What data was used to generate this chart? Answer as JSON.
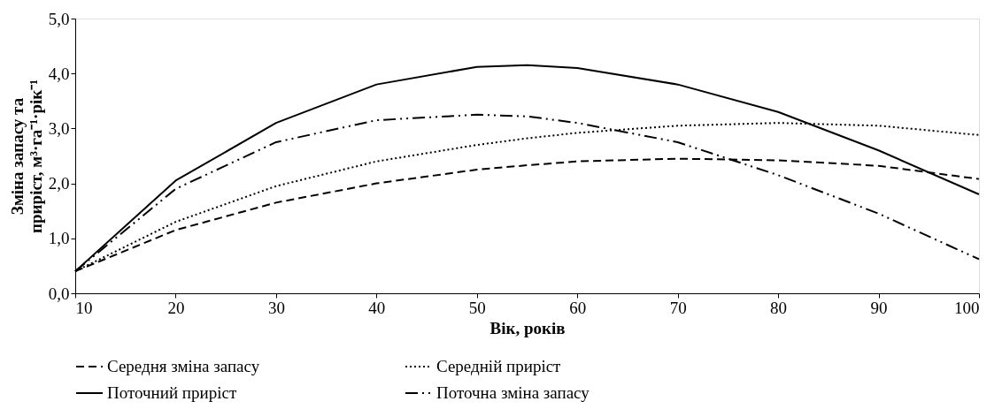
{
  "chart_data": {
    "type": "line",
    "xlabel": "Вік, років",
    "ylabel": "Зміна запасу та приріст, м³·га⁻¹·рік⁻¹",
    "x": [
      10,
      20,
      30,
      40,
      50,
      55,
      60,
      70,
      80,
      90,
      100
    ],
    "series": [
      {
        "name": "Середня зміна запасу",
        "color": "#000000",
        "line_style": "dashed",
        "values": [
          0.4,
          1.15,
          1.65,
          2.0,
          2.25,
          2.33,
          2.4,
          2.45,
          2.42,
          2.32,
          2.08
        ]
      },
      {
        "name": "Середній приріст",
        "color": "#000000",
        "line_style": "dotted",
        "values": [
          0.4,
          1.3,
          1.95,
          2.4,
          2.7,
          2.82,
          2.92,
          3.05,
          3.1,
          3.05,
          2.88
        ]
      },
      {
        "name": "Поточний приріст",
        "color": "#000000",
        "line_style": "solid",
        "values": [
          0.4,
          2.05,
          3.1,
          3.8,
          4.12,
          4.15,
          4.1,
          3.8,
          3.3,
          2.6,
          1.8
        ]
      },
      {
        "name": "Поточна зміна запасу",
        "color": "#000000",
        "line_style": "dashdot",
        "values": [
          0.4,
          1.9,
          2.75,
          3.15,
          3.25,
          3.22,
          3.1,
          2.75,
          2.15,
          1.45,
          0.62
        ]
      }
    ],
    "xlim": [
      10,
      100
    ],
    "xticks": [
      10,
      20,
      30,
      40,
      50,
      60,
      70,
      80,
      90,
      100
    ],
    "ylim": [
      0,
      5
    ],
    "yticks": [
      {
        "value": 0,
        "label": "0,0"
      },
      {
        "value": 1,
        "label": "1,0"
      },
      {
        "value": 2,
        "label": "2,0"
      },
      {
        "value": 3,
        "label": "3,0"
      },
      {
        "value": 4,
        "label": "4,0"
      },
      {
        "value": 5,
        "label": "5,0"
      }
    ],
    "grid": false,
    "legend": "bottom",
    "marker": "none"
  }
}
